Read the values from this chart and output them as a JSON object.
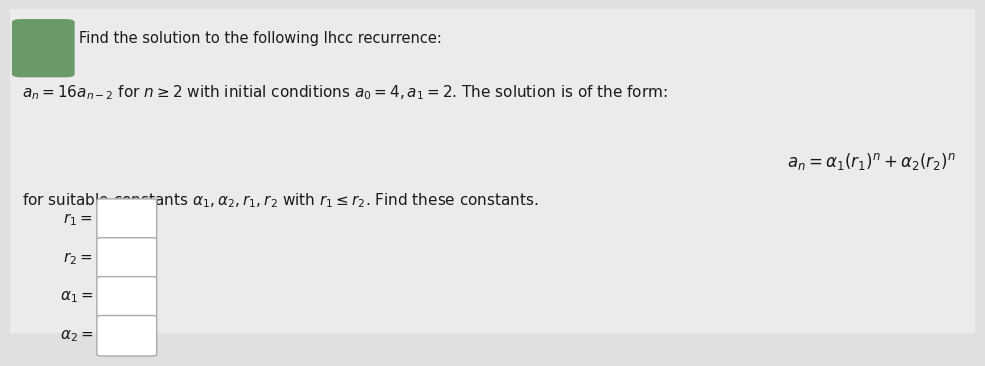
{
  "bg_color": "#e0e0e0",
  "content_bg": "#f0f0f0",
  "text_color": "#1a1a1a",
  "title_line": "Find the solution to the following lhcc recurrence:",
  "formula_rhs": "$a_n = \\alpha_1(r_1)^n + \\alpha_2(r_2)^n$",
  "line3": "for suitable constants $\\alpha_1, \\alpha_2, r_1, r_2$ with $r_1 \\leq r_2$. Find these constants.",
  "icon_color": "#6a9a6a",
  "box_edge_color": "#aaaaaa",
  "box_face_color": "#ffffff",
  "font_size_title": 10.5,
  "font_size_body": 11,
  "font_size_formula": 12,
  "font_size_labels": 11,
  "label_texts": [
    "$r_1 =$",
    "$r_2 =$",
    "$\\alpha_1 =$",
    "$\\alpha_2 =$"
  ]
}
